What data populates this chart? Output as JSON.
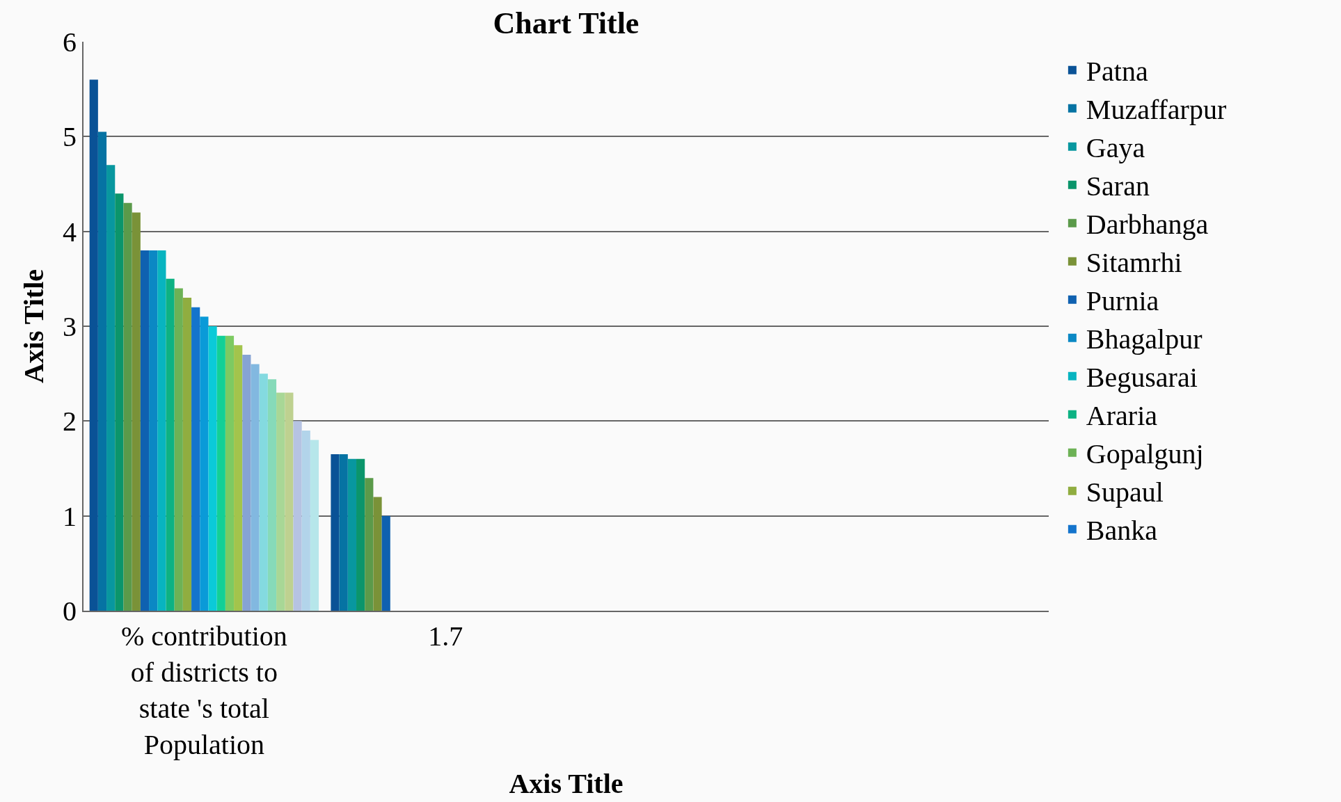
{
  "chart_data": {
    "type": "bar",
    "title": "Chart Title",
    "xlabel": "Axis Title",
    "ylabel": "Axis Title",
    "categories": [
      "% contribution of districts to state 's total Population",
      "1.7",
      null,
      null
    ],
    "ylim": [
      0,
      6
    ],
    "yticks": [
      0,
      1,
      2,
      3,
      4,
      5,
      6
    ],
    "grid": "y",
    "legend": "right",
    "series": [
      {
        "name": "Patna",
        "color": "#0a5296",
        "values": [
          5.6,
          1.65,
          null,
          null
        ]
      },
      {
        "name": "Muzaffarpur",
        "color": "#0673a3",
        "values": [
          5.05,
          1.65,
          null,
          null
        ]
      },
      {
        "name": "Gaya",
        "color": "#08979f",
        "values": [
          4.7,
          1.6,
          null,
          null
        ]
      },
      {
        "name": "Saran",
        "color": "#0b956b",
        "values": [
          4.4,
          1.6,
          null,
          null
        ]
      },
      {
        "name": "Darbhanga",
        "color": "#5b9a4a",
        "values": [
          4.3,
          1.4,
          null,
          null
        ]
      },
      {
        "name": "Sitamrhi",
        "color": "#7a9238",
        "values": [
          4.2,
          1.2,
          null,
          null
        ]
      },
      {
        "name": "Purnia",
        "color": "#0f61b0",
        "values": [
          3.8,
          1.0,
          null,
          null
        ]
      },
      {
        "name": "Bhagalpur",
        "color": "#0b88c4",
        "values": [
          3.8,
          null,
          null,
          null
        ]
      },
      {
        "name": "Begusarai",
        "color": "#08b4c0",
        "values": [
          3.8,
          null,
          null,
          null
        ]
      },
      {
        "name": "Araria",
        "color": "#0db283",
        "values": [
          3.5,
          null,
          null,
          null
        ]
      },
      {
        "name": "Gopalgunj",
        "color": "#6db256",
        "values": [
          3.4,
          null,
          null,
          null
        ]
      },
      {
        "name": "Supaul",
        "color": "#90ad40",
        "values": [
          3.3,
          null,
          null,
          null
        ]
      },
      {
        "name": "Banka",
        "color": "#1474cc",
        "values": [
          3.2,
          null,
          null,
          null
        ]
      },
      {
        "color": "#0a9ad8",
        "values": [
          3.1,
          null,
          null,
          null
        ]
      },
      {
        "color": "#0bcad8",
        "values": [
          3.0,
          null,
          null,
          null
        ]
      },
      {
        "color": "#12d096",
        "values": [
          2.9,
          null,
          null,
          null
        ]
      },
      {
        "color": "#7dca62",
        "values": [
          2.9,
          null,
          null,
          null
        ]
      },
      {
        "color": "#a3c44c",
        "values": [
          2.8,
          null,
          null,
          null
        ]
      },
      {
        "color": "#86a3d4",
        "values": [
          2.7,
          null,
          null,
          null
        ]
      },
      {
        "color": "#82b8e0",
        "values": [
          2.6,
          null,
          null,
          null
        ]
      },
      {
        "color": "#84dae0",
        "values": [
          2.5,
          null,
          null,
          null
        ]
      },
      {
        "color": "#86dab9",
        "values": [
          2.44,
          null,
          null,
          null
        ]
      },
      {
        "color": "#a8d796",
        "values": [
          2.3,
          null,
          null,
          null
        ]
      },
      {
        "color": "#bed190",
        "values": [
          2.3,
          null,
          null,
          null
        ]
      },
      {
        "color": "#b6c3e2",
        "values": [
          2.0,
          null,
          null,
          null
        ]
      },
      {
        "color": "#b2d4ea",
        "values": [
          1.9,
          null,
          null,
          null
        ]
      },
      {
        "color": "#b6e6ea",
        "values": [
          1.8,
          null,
          null,
          null
        ]
      }
    ]
  }
}
